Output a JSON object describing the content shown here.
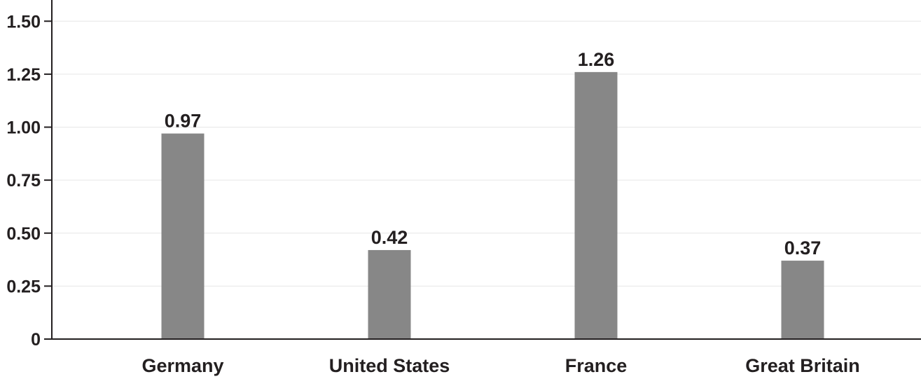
{
  "chart_data": {
    "type": "bar",
    "categories": [
      "Germany",
      "United States",
      "France",
      "Great Britain"
    ],
    "values": [
      0.97,
      0.42,
      1.26,
      0.37
    ],
    "data_labels": [
      "0.97",
      "0.42",
      "1.26",
      "0.37"
    ],
    "title": "",
    "xlabel": "",
    "ylabel": "",
    "ylim": [
      0,
      1.6
    ],
    "yticks": [
      0,
      0.25,
      0.5,
      0.75,
      1.0,
      1.25,
      1.5
    ],
    "ytick_labels": [
      "0",
      "0.25",
      "0.50",
      "0.75",
      "1.00",
      "1.25",
      "1.50"
    ],
    "grid": true,
    "legend": false,
    "colors": {
      "bar": "#878787",
      "axis": "#231f20",
      "grid": "#e6e6e6"
    }
  }
}
